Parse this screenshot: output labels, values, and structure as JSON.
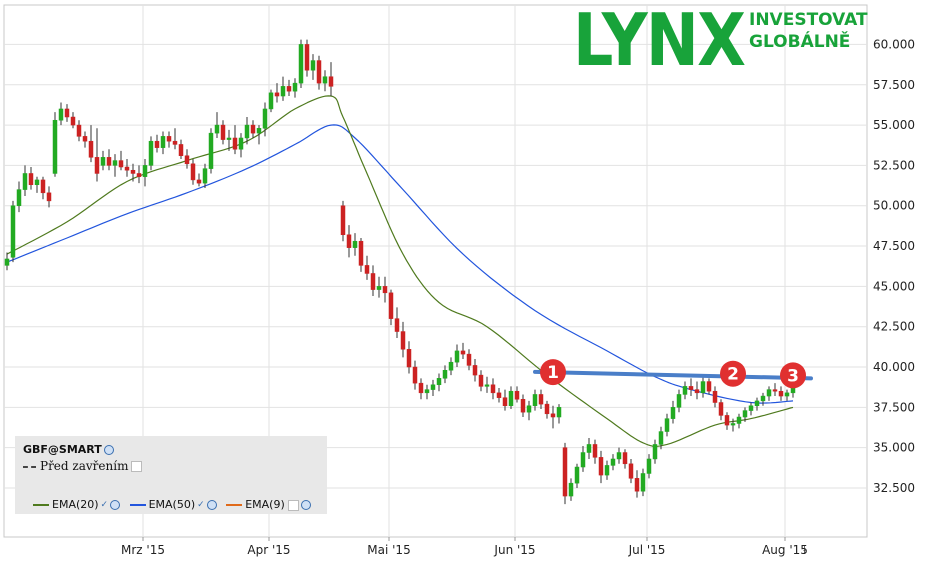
{
  "logo": {
    "word": "LYNX",
    "tagline_1": "INVESTOVAT",
    "tagline_2": "GLOBÁLNĚ",
    "color": "#18a33a"
  },
  "legend": {
    "symbol": "GBF@SMART",
    "previous_close_label": "Před zavřením",
    "indicators": [
      {
        "label": "EMA(20)",
        "color": "#4f7a1e"
      },
      {
        "label": "EMA(50)",
        "color": "#2255dd"
      },
      {
        "label": "EMA(9)",
        "color": "#e06a1a"
      }
    ]
  },
  "chart_data": {
    "type": "candlestick",
    "title": "",
    "y_axis": {
      "ylim": [
        30.5,
        62.0
      ],
      "ticks": [
        "32.500",
        "35.000",
        "37.500",
        "40.000",
        "42.500",
        "45.000",
        "47.500",
        "50.000",
        "52.500",
        "55.000",
        "57.500",
        "60.000"
      ],
      "tick_values": [
        32.5,
        35,
        37.5,
        40,
        42.5,
        45,
        47.5,
        50,
        52.5,
        55,
        57.5,
        60
      ],
      "side": "right"
    },
    "x_axis": {
      "ticks": [
        {
          "label": "Mrz '15",
          "day": 23
        },
        {
          "label": "Apr '15",
          "day": 44
        },
        {
          "label": "Mai '15",
          "day": 64
        },
        {
          "label": "Jun '15",
          "day": 85
        },
        {
          "label": "Jul '15",
          "day": 107
        },
        {
          "label": "Aug '15",
          "day": 130
        }
      ],
      "day_range": [
        0,
        141
      ]
    },
    "grid": true,
    "colors": {
      "up": "#22aa22",
      "down": "#cc2222",
      "ema20": "#4f7a1e",
      "ema50": "#2255dd",
      "resistance": "#4a7ec8",
      "annotation": "#e03030"
    },
    "candles": [
      [
        0,
        46.3,
        47.1,
        46.0,
        46.7
      ],
      [
        1,
        46.8,
        50.3,
        46.5,
        50.0
      ],
      [
        2,
        50.0,
        51.5,
        49.6,
        51.0
      ],
      [
        3,
        51.0,
        52.5,
        50.6,
        52.0
      ],
      [
        4,
        52.0,
        52.4,
        51.0,
        51.3
      ],
      [
        5,
        51.3,
        51.8,
        50.8,
        51.6
      ],
      [
        6,
        51.6,
        51.8,
        50.4,
        50.8
      ],
      [
        7,
        50.8,
        51.2,
        49.9,
        50.3
      ],
      [
        8,
        52.0,
        55.8,
        51.8,
        55.3
      ],
      [
        9,
        55.3,
        56.4,
        55.0,
        56.0
      ],
      [
        10,
        56.0,
        56.3,
        55.2,
        55.5
      ],
      [
        11,
        55.5,
        55.8,
        54.8,
        55.0
      ],
      [
        12,
        55.0,
        55.3,
        54.0,
        54.3
      ],
      [
        13,
        54.3,
        54.6,
        53.6,
        54.0
      ],
      [
        14,
        54.0,
        55.0,
        52.7,
        53.0
      ],
      [
        15,
        53.0,
        54.8,
        51.5,
        52.0
      ],
      [
        16,
        52.5,
        53.4,
        52.2,
        53.0
      ],
      [
        17,
        53.0,
        53.5,
        52.2,
        52.5
      ],
      [
        18,
        52.5,
        53.2,
        51.8,
        52.8
      ],
      [
        19,
        52.8,
        53.4,
        52.2,
        52.4
      ],
      [
        20,
        52.4,
        52.9,
        51.8,
        52.2
      ],
      [
        21,
        52.2,
        52.6,
        51.5,
        52.0
      ],
      [
        22,
        52.0,
        52.5,
        51.4,
        51.8
      ],
      [
        23,
        51.8,
        52.9,
        51.2,
        52.5
      ],
      [
        24,
        52.5,
        54.3,
        52.2,
        54.0
      ],
      [
        25,
        54.0,
        54.4,
        53.3,
        53.6
      ],
      [
        26,
        53.6,
        54.6,
        53.2,
        54.3
      ],
      [
        27,
        54.3,
        54.6,
        53.6,
        54.0
      ],
      [
        28,
        54.0,
        54.8,
        53.5,
        53.8
      ],
      [
        29,
        53.8,
        54.1,
        52.9,
        53.1
      ],
      [
        30,
        53.1,
        53.5,
        52.3,
        52.6
      ],
      [
        31,
        52.6,
        52.9,
        51.3,
        51.6
      ],
      [
        32,
        51.6,
        52.0,
        51.2,
        51.4
      ],
      [
        33,
        51.4,
        52.6,
        51.1,
        52.3
      ],
      [
        34,
        52.3,
        54.8,
        52.0,
        54.5
      ],
      [
        35,
        54.5,
        55.8,
        54.2,
        55.0
      ],
      [
        36,
        55.0,
        55.3,
        53.8,
        54.1
      ],
      [
        37,
        54.1,
        54.7,
        53.4,
        54.2
      ],
      [
        38,
        54.2,
        55.0,
        53.2,
        53.5
      ],
      [
        39,
        53.5,
        54.5,
        53.0,
        54.2
      ],
      [
        40,
        54.2,
        55.5,
        53.8,
        55.0
      ],
      [
        41,
        55.0,
        55.3,
        54.2,
        54.5
      ],
      [
        42,
        54.5,
        55.0,
        53.8,
        54.8
      ],
      [
        43,
        54.8,
        56.4,
        54.3,
        56.0
      ],
      [
        44,
        56.0,
        57.2,
        55.8,
        57.0
      ],
      [
        45,
        57.0,
        57.6,
        56.4,
        56.8
      ],
      [
        46,
        56.8,
        58.0,
        56.5,
        57.4
      ],
      [
        47,
        57.4,
        57.8,
        56.8,
        57.1
      ],
      [
        48,
        57.1,
        57.9,
        56.7,
        57.6
      ],
      [
        49,
        57.6,
        60.3,
        57.3,
        60.0
      ],
      [
        50,
        60.0,
        60.3,
        58.0,
        58.4
      ],
      [
        51,
        58.4,
        59.4,
        57.8,
        59.0
      ],
      [
        52,
        59.0,
        59.3,
        57.2,
        57.6
      ],
      [
        53,
        57.6,
        58.4,
        57.1,
        58.0
      ],
      [
        54,
        58.0,
        58.9,
        56.8,
        57.4
      ],
      [
        56,
        50.0,
        50.3,
        47.8,
        48.2
      ],
      [
        57,
        48.2,
        48.8,
        46.8,
        47.4
      ],
      [
        58,
        47.4,
        48.3,
        46.9,
        47.8
      ],
      [
        59,
        47.8,
        48.0,
        45.9,
        46.3
      ],
      [
        60,
        46.3,
        46.9,
        45.4,
        45.8
      ],
      [
        61,
        45.8,
        46.3,
        44.4,
        44.8
      ],
      [
        62,
        44.8,
        45.6,
        44.3,
        45.0
      ],
      [
        63,
        45.0,
        45.6,
        44.0,
        44.6
      ],
      [
        64,
        44.6,
        44.8,
        42.6,
        43.0
      ],
      [
        65,
        43.0,
        43.7,
        41.8,
        42.2
      ],
      [
        66,
        42.2,
        42.8,
        40.6,
        41.1
      ],
      [
        67,
        41.1,
        41.6,
        39.6,
        40.0
      ],
      [
        68,
        40.0,
        40.4,
        38.6,
        39.0
      ],
      [
        69,
        39.0,
        39.3,
        38.0,
        38.4
      ],
      [
        70,
        38.4,
        38.9,
        38.0,
        38.6
      ],
      [
        71,
        38.6,
        39.2,
        38.2,
        38.9
      ],
      [
        72,
        38.9,
        39.6,
        38.5,
        39.3
      ],
      [
        73,
        39.3,
        40.1,
        39.0,
        39.8
      ],
      [
        74,
        39.8,
        40.6,
        39.5,
        40.3
      ],
      [
        75,
        40.3,
        41.4,
        40.0,
        41.0
      ],
      [
        76,
        41.0,
        41.5,
        40.5,
        40.8
      ],
      [
        77,
        40.8,
        41.1,
        39.8,
        40.1
      ],
      [
        78,
        40.1,
        40.5,
        39.1,
        39.5
      ],
      [
        79,
        39.5,
        39.8,
        38.5,
        38.8
      ],
      [
        80,
        38.8,
        39.4,
        38.4,
        38.9
      ],
      [
        81,
        38.9,
        39.3,
        38.0,
        38.4
      ],
      [
        82,
        38.4,
        38.7,
        37.8,
        38.1
      ],
      [
        83,
        38.1,
        38.6,
        37.3,
        37.6
      ],
      [
        84,
        37.6,
        38.8,
        37.4,
        38.5
      ],
      [
        85,
        38.5,
        38.8,
        37.8,
        38.0
      ],
      [
        86,
        38.0,
        38.3,
        36.9,
        37.2
      ],
      [
        87,
        37.2,
        37.9,
        36.7,
        37.6
      ],
      [
        88,
        37.6,
        38.6,
        37.3,
        38.3
      ],
      [
        89,
        38.3,
        38.6,
        37.4,
        37.7
      ],
      [
        90,
        37.7,
        37.9,
        36.8,
        37.1
      ],
      [
        91,
        37.1,
        37.6,
        36.2,
        36.9
      ],
      [
        92,
        36.9,
        37.7,
        36.5,
        37.5
      ],
      [
        93,
        35.0,
        35.3,
        31.5,
        32.0
      ],
      [
        94,
        32.0,
        33.1,
        31.7,
        32.8
      ],
      [
        95,
        32.8,
        34.0,
        32.5,
        33.8
      ],
      [
        96,
        33.8,
        35.1,
        33.5,
        34.7
      ],
      [
        97,
        34.7,
        35.6,
        34.3,
        35.2
      ],
      [
        98,
        35.2,
        35.5,
        34.0,
        34.4
      ],
      [
        99,
        34.4,
        34.8,
        32.8,
        33.3
      ],
      [
        100,
        33.3,
        34.2,
        33.0,
        33.9
      ],
      [
        101,
        33.9,
        34.6,
        33.6,
        34.3
      ],
      [
        102,
        34.3,
        35.0,
        34.0,
        34.7
      ],
      [
        103,
        34.7,
        34.9,
        33.7,
        34.0
      ],
      [
        104,
        34.0,
        34.3,
        32.8,
        33.1
      ],
      [
        105,
        33.1,
        33.6,
        31.9,
        32.3
      ],
      [
        106,
        32.3,
        33.7,
        32.0,
        33.4
      ],
      [
        107,
        33.4,
        34.6,
        33.1,
        34.3
      ],
      [
        108,
        34.3,
        35.5,
        34.0,
        35.2
      ],
      [
        109,
        35.2,
        36.3,
        34.9,
        36.0
      ],
      [
        110,
        36.0,
        37.1,
        35.7,
        36.8
      ],
      [
        111,
        36.8,
        37.9,
        36.5,
        37.5
      ],
      [
        112,
        37.5,
        38.6,
        37.2,
        38.3
      ],
      [
        113,
        38.3,
        39.1,
        38.0,
        38.8
      ],
      [
        114,
        38.8,
        39.3,
        38.2,
        38.6
      ],
      [
        115,
        38.6,
        39.1,
        38.0,
        38.4
      ],
      [
        116,
        38.4,
        39.4,
        38.1,
        39.1
      ],
      [
        117,
        39.1,
        39.3,
        38.3,
        38.5
      ],
      [
        118,
        38.5,
        38.8,
        37.5,
        37.8
      ],
      [
        119,
        37.8,
        38.0,
        36.7,
        37.0
      ],
      [
        120,
        37.0,
        37.2,
        36.1,
        36.4
      ],
      [
        121,
        36.4,
        36.8,
        36.0,
        36.5
      ],
      [
        122,
        36.5,
        37.1,
        36.2,
        36.9
      ],
      [
        123,
        36.9,
        37.5,
        36.6,
        37.3
      ],
      [
        124,
        37.3,
        37.8,
        37.0,
        37.6
      ],
      [
        125,
        37.6,
        38.1,
        37.3,
        37.9
      ],
      [
        126,
        37.9,
        38.4,
        37.6,
        38.2
      ],
      [
        127,
        38.2,
        38.8,
        37.9,
        38.6
      ],
      [
        128,
        38.6,
        39.0,
        38.2,
        38.5
      ],
      [
        129,
        38.5,
        38.8,
        37.9,
        38.2
      ],
      [
        130,
        38.2,
        38.6,
        37.9,
        38.4
      ],
      [
        131,
        38.4,
        39.0,
        38.1,
        38.8
      ]
    ],
    "ema20": [
      [
        0,
        47.0
      ],
      [
        10,
        49.0
      ],
      [
        20,
        51.5
      ],
      [
        30,
        52.8
      ],
      [
        40,
        54.0
      ],
      [
        48,
        56.0
      ],
      [
        54,
        56.8
      ],
      [
        56,
        55.5
      ],
      [
        60,
        52.0
      ],
      [
        66,
        47.0
      ],
      [
        72,
        44.0
      ],
      [
        80,
        42.5
      ],
      [
        90,
        39.5
      ],
      [
        100,
        36.8
      ],
      [
        106,
        35.3
      ],
      [
        110,
        35.2
      ],
      [
        118,
        36.4
      ],
      [
        124,
        36.8
      ],
      [
        131,
        37.5
      ]
    ],
    "ema50": [
      [
        0,
        46.5
      ],
      [
        10,
        48.0
      ],
      [
        20,
        49.5
      ],
      [
        30,
        50.8
      ],
      [
        40,
        52.3
      ],
      [
        48,
        53.8
      ],
      [
        54,
        55.0
      ],
      [
        58,
        54.2
      ],
      [
        66,
        51.0
      ],
      [
        76,
        47.0
      ],
      [
        88,
        43.5
      ],
      [
        100,
        41.0
      ],
      [
        108,
        39.4
      ],
      [
        114,
        38.6
      ],
      [
        124,
        37.8
      ],
      [
        131,
        37.9
      ]
    ],
    "resistance": [
      [
        88,
        39.7
      ],
      [
        134,
        39.3
      ]
    ],
    "annotations": [
      {
        "label": "1",
        "day": 91,
        "value": 40.8
      },
      {
        "label": "2",
        "day": 121,
        "value": 40.7
      },
      {
        "label": "3",
        "day": 131,
        "value": 40.6
      }
    ]
  }
}
